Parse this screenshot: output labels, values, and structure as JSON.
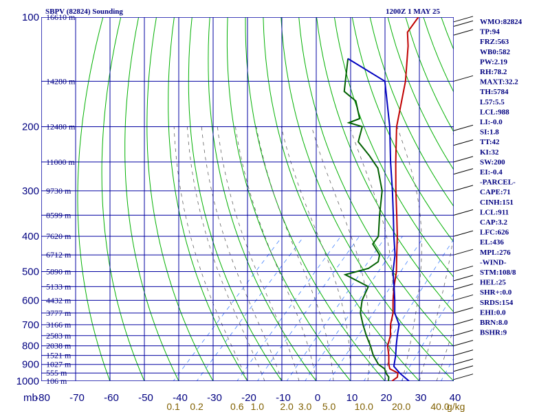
{
  "header": {
    "station": "SBPV (82824) Sounding",
    "time": "1200Z  1 MAY 25"
  },
  "colors": {
    "grid": "#0000a0",
    "dry_adiabat": "#00b000",
    "moist_adiabat": "#606060",
    "mixing_ratio": "#4080ff",
    "temperature": "#c00000",
    "dewpoint": "#006000",
    "parcel": "#0000c0",
    "text": "#000080",
    "mixing_label": "#806000"
  },
  "chart_data": {
    "type": "line",
    "pressure_unit_label": "mb",
    "mixing_ratio_unit_label": "g/kg",
    "pressure_range": [
      1000,
      100
    ],
    "pressure_labels": [
      "100",
      "200",
      "300",
      "400",
      "500",
      "600",
      "700",
      "800",
      "900",
      "1000"
    ],
    "temperature_labels": [
      "-80",
      "-70",
      "-60",
      "-50",
      "-40",
      "-30",
      "-20",
      "-10",
      "0",
      "10",
      "20",
      "30",
      "40"
    ],
    "mixing_ratio_labels": [
      "0.1",
      "0.2",
      "0.6",
      "1.0",
      "2.0",
      "3.0",
      "5.0",
      "10.0",
      "20.0",
      "40.0"
    ],
    "height_labels": [
      {
        "p": 100,
        "text": "16610 m"
      },
      {
        "p": 150,
        "text": "14280 m"
      },
      {
        "p": 200,
        "text": "12480 m"
      },
      {
        "p": 250,
        "text": "11000 m"
      },
      {
        "p": 300,
        "text": "9730 m"
      },
      {
        "p": 350,
        "text": "8599 m"
      },
      {
        "p": 400,
        "text": "7620 m"
      },
      {
        "p": 450,
        "text": "6712 m"
      },
      {
        "p": 500,
        "text": "5890 m"
      },
      {
        "p": 550,
        "text": "5133 m"
      },
      {
        "p": 600,
        "text": "4432 m"
      },
      {
        "p": 650,
        "text": "3777 m"
      },
      {
        "p": 700,
        "text": "3166 m"
      },
      {
        "p": 750,
        "text": "2583 m"
      },
      {
        "p": 800,
        "text": "2038 m"
      },
      {
        "p": 850,
        "text": "1521 m"
      },
      {
        "p": 900,
        "text": "1027 m"
      },
      {
        "p": 950,
        "text": "555 m"
      },
      {
        "p": 1000,
        "text": "106 m"
      }
    ],
    "series": [
      {
        "name": "temperature",
        "points": [
          [
            1000,
            22.0
          ],
          [
            975,
            22.5
          ],
          [
            950,
            21.5
          ],
          [
            925,
            18.0
          ],
          [
            900,
            16.5
          ],
          [
            850,
            14.0
          ],
          [
            800,
            11.0
          ],
          [
            750,
            9.0
          ],
          [
            700,
            6.0
          ],
          [
            650,
            3.5
          ],
          [
            600,
            0.0
          ],
          [
            550,
            -3.5
          ],
          [
            500,
            -7.0
          ],
          [
            450,
            -11.5
          ],
          [
            400,
            -16.5
          ],
          [
            350,
            -22.5
          ],
          [
            300,
            -29.5
          ],
          [
            250,
            -37.5
          ],
          [
            200,
            -47.0
          ],
          [
            150,
            -57.0
          ],
          [
            120,
            -66.0
          ],
          [
            110,
            -70.0
          ],
          [
            100,
            -71.0
          ]
        ]
      },
      {
        "name": "dewpoint",
        "points": [
          [
            1000,
            21.0
          ],
          [
            975,
            20.0
          ],
          [
            950,
            18.0
          ],
          [
            925,
            16.5
          ],
          [
            900,
            13.5
          ],
          [
            850,
            9.5
          ],
          [
            800,
            6.0
          ],
          [
            750,
            2.0
          ],
          [
            700,
            -2.0
          ],
          [
            650,
            -6.0
          ],
          [
            600,
            -9.0
          ],
          [
            550,
            -11.0
          ],
          [
            510,
            -21.0
          ],
          [
            490,
            -16.0
          ],
          [
            470,
            -15.0
          ],
          [
            450,
            -16.5
          ],
          [
            420,
            -21.5
          ],
          [
            400,
            -22.0
          ],
          [
            350,
            -27.5
          ],
          [
            300,
            -33.5
          ],
          [
            260,
            -41.0
          ],
          [
            240,
            -47.0
          ],
          [
            220,
            -54.0
          ],
          [
            200,
            -57.0
          ],
          [
            195,
            -62.0
          ],
          [
            190,
            -60.0
          ],
          [
            170,
            -66.0
          ],
          [
            160,
            -72.0
          ],
          [
            130,
            -80.0
          ]
        ]
      },
      {
        "name": "parcel",
        "points": [
          [
            1000,
            27.0
          ],
          [
            950,
            22.0
          ],
          [
            911,
            18.5
          ],
          [
            850,
            16.0
          ],
          [
            800,
            13.5
          ],
          [
            750,
            11.0
          ],
          [
            700,
            8.5
          ],
          [
            650,
            4.0
          ],
          [
            600,
            0.5
          ],
          [
            550,
            -3.5
          ],
          [
            500,
            -8.0
          ],
          [
            450,
            -12.0
          ],
          [
            400,
            -17.5
          ],
          [
            350,
            -23.5
          ],
          [
            300,
            -30.5
          ],
          [
            250,
            -39.0
          ],
          [
            200,
            -49.0
          ],
          [
            150,
            -63.0
          ],
          [
            130,
            -80.0
          ]
        ]
      }
    ],
    "wind_barb_levels": [
      103,
      106,
      112,
      150,
      205,
      225,
      250,
      270,
      300,
      350,
      400,
      450,
      500,
      530,
      560,
      600,
      650,
      700,
      750,
      800,
      850,
      900,
      940,
      990
    ]
  },
  "indices": [
    "WMO:82824",
    "TP:94",
    "FRZ:563",
    "WB0:582",
    "PW:2.19",
    "RH:78.2",
    "MAXT:32.2",
    "TH:5784",
    "L57:5.5",
    "LCL:988",
    "LI:-0.0",
    "SI:1.8",
    "TT:42",
    "KI:32",
    "SW:200",
    "EI:-0.4",
    "-PARCEL-",
    "CAPE:71",
    "CINH:151",
    "LCL:911",
    "CAP:3.2",
    "LFC:626",
    "EL:436",
    "MPL:276",
    "-WIND-",
    "STM:108/8",
    "HEL:25",
    "SHR+:0.0",
    "SRDS:154",
    "EHI:0.0",
    "BRN:8.0",
    "BSHR:9"
  ]
}
